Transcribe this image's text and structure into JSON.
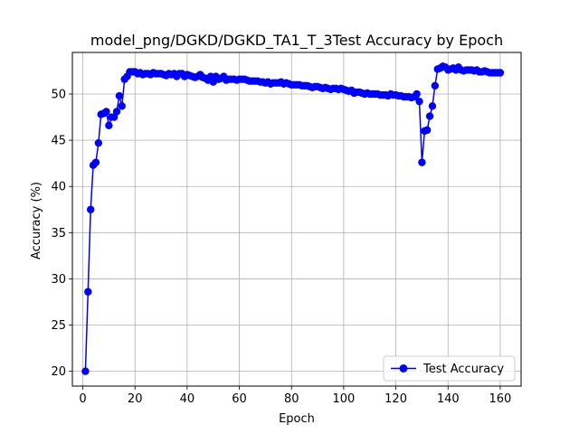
{
  "chart_data": {
    "type": "line",
    "title": "model_png/DGKD/DGKD_TA1_T_3Test Accuracy by Epoch",
    "xlabel": "Epoch",
    "ylabel": "Accuracy (%)",
    "xlim": [
      -4,
      168
    ],
    "ylim": [
      18.4,
      54.5
    ],
    "xticks": [
      0,
      20,
      40,
      60,
      80,
      100,
      120,
      140,
      160
    ],
    "yticks": [
      20,
      25,
      30,
      35,
      40,
      45,
      50
    ],
    "grid": true,
    "legend": {
      "placement": "lower-right"
    },
    "series": [
      {
        "name": "Test Accuracy",
        "color": "#0000ff",
        "marker": "circle",
        "x": [
          1,
          2,
          3,
          4,
          5,
          6,
          7,
          8,
          9,
          10,
          11,
          12,
          13,
          14,
          15,
          16,
          17,
          18,
          19,
          20,
          21,
          22,
          23,
          24,
          25,
          26,
          27,
          28,
          29,
          30,
          31,
          32,
          33,
          34,
          35,
          36,
          37,
          38,
          39,
          40,
          41,
          42,
          43,
          44,
          45,
          46,
          47,
          48,
          49,
          50,
          51,
          52,
          53,
          54,
          55,
          56,
          57,
          58,
          59,
          60,
          61,
          62,
          63,
          64,
          65,
          66,
          67,
          68,
          69,
          70,
          71,
          72,
          73,
          74,
          75,
          76,
          77,
          78,
          79,
          80,
          81,
          82,
          83,
          84,
          85,
          86,
          87,
          88,
          89,
          90,
          91,
          92,
          93,
          94,
          95,
          96,
          97,
          98,
          99,
          100,
          101,
          102,
          103,
          104,
          105,
          106,
          107,
          108,
          109,
          110,
          111,
          112,
          113,
          114,
          115,
          116,
          117,
          118,
          119,
          120,
          121,
          122,
          123,
          124,
          125,
          126,
          127,
          128,
          129,
          130,
          131,
          132,
          133,
          134,
          135,
          136,
          137,
          138,
          139,
          140,
          141,
          142,
          143,
          144,
          145,
          146,
          147,
          148,
          149,
          150,
          151,
          152,
          153,
          154,
          155,
          156,
          157,
          158,
          159,
          160
        ],
        "values": [
          20.0,
          28.6,
          37.5,
          42.3,
          42.6,
          44.7,
          47.8,
          47.9,
          48.1,
          46.6,
          47.5,
          47.5,
          48.1,
          49.8,
          48.7,
          51.6,
          51.9,
          52.4,
          52.4,
          52.4,
          52.2,
          52.3,
          52.1,
          52.2,
          52.2,
          52.1,
          52.3,
          52.2,
          52.2,
          52.2,
          52.1,
          52.0,
          52.2,
          52.1,
          52.2,
          51.9,
          52.2,
          52.2,
          51.9,
          52.1,
          52.0,
          51.9,
          51.8,
          51.9,
          52.1,
          51.8,
          51.7,
          51.5,
          51.9,
          51.3,
          51.9,
          51.6,
          51.7,
          51.9,
          51.5,
          51.6,
          51.6,
          51.6,
          51.5,
          51.6,
          51.6,
          51.6,
          51.5,
          51.4,
          51.4,
          51.4,
          51.4,
          51.3,
          51.3,
          51.2,
          51.3,
          51.1,
          51.2,
          51.2,
          51.2,
          51.3,
          51.1,
          51.2,
          51.1,
          51.0,
          51.0,
          51.0,
          51.0,
          50.9,
          50.9,
          50.9,
          50.8,
          50.7,
          50.8,
          50.8,
          50.7,
          50.6,
          50.7,
          50.6,
          50.5,
          50.6,
          50.6,
          50.5,
          50.6,
          50.5,
          50.4,
          50.3,
          50.4,
          50.1,
          50.2,
          50.2,
          50.1,
          50.0,
          50.1,
          50.0,
          50.0,
          50.0,
          50.0,
          49.9,
          49.9,
          49.9,
          49.8,
          50.0,
          49.9,
          49.9,
          49.8,
          49.8,
          49.7,
          49.7,
          49.7,
          49.6,
          49.7,
          50.0,
          49.2,
          42.6,
          46.0,
          46.1,
          47.6,
          48.7,
          50.9,
          52.7,
          52.8,
          53.0,
          52.9,
          52.6,
          52.7,
          52.8,
          52.6,
          52.9,
          52.6,
          52.5,
          52.6,
          52.6,
          52.6,
          52.5,
          52.6,
          52.4,
          52.4,
          52.5,
          52.4,
          52.3,
          52.3,
          52.3,
          52.3,
          52.3
        ]
      }
    ]
  }
}
